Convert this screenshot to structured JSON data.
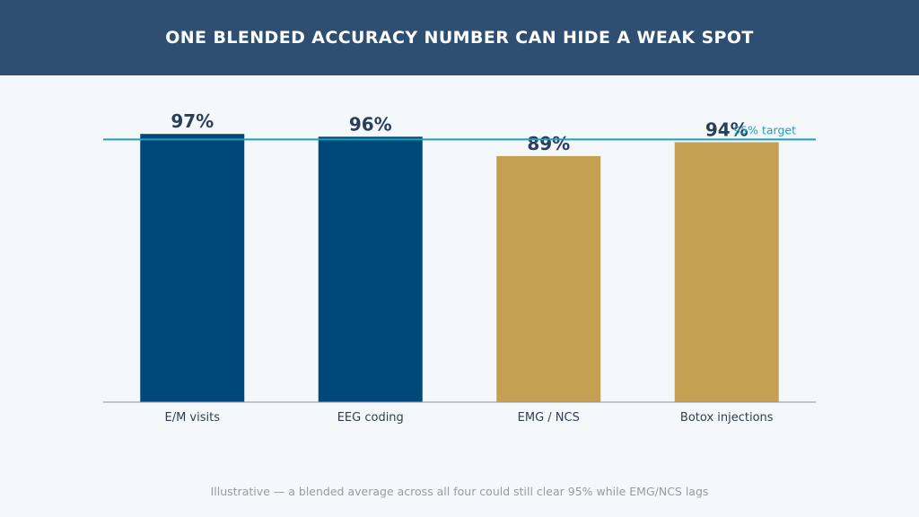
{
  "header": {
    "title": "ONE BLENDED ACCURACY NUMBER CAN HIDE A WEAK SPOT"
  },
  "footnote": "Illustrative — a blended average across all four could still clear 95% while EMG/NCS lags",
  "colors": {
    "header_bg": "#2e4e72",
    "primary_bar": "#00487a",
    "warning_bar": "#c6a052",
    "target_line": "#1ea0bb",
    "value_label": "#2b3e59"
  },
  "chart_data": {
    "type": "bar",
    "title": "ONE BLENDED ACCURACY NUMBER CAN HIDE A WEAK SPOT",
    "categories": [
      "E/M visits",
      "EEG coding",
      "EMG / NCS",
      "Botox injections"
    ],
    "values": [
      97,
      96,
      89,
      94
    ],
    "value_labels": [
      "97%",
      "96%",
      "89%",
      "94%"
    ],
    "bar_colors": [
      "#00487a",
      "#00487a",
      "#c6a052",
      "#c6a052"
    ],
    "target": {
      "value": 95,
      "label": "95% target"
    },
    "ylim": [
      0,
      100
    ],
    "xlabel": "",
    "ylabel": "",
    "grid": false,
    "legend": "none"
  }
}
